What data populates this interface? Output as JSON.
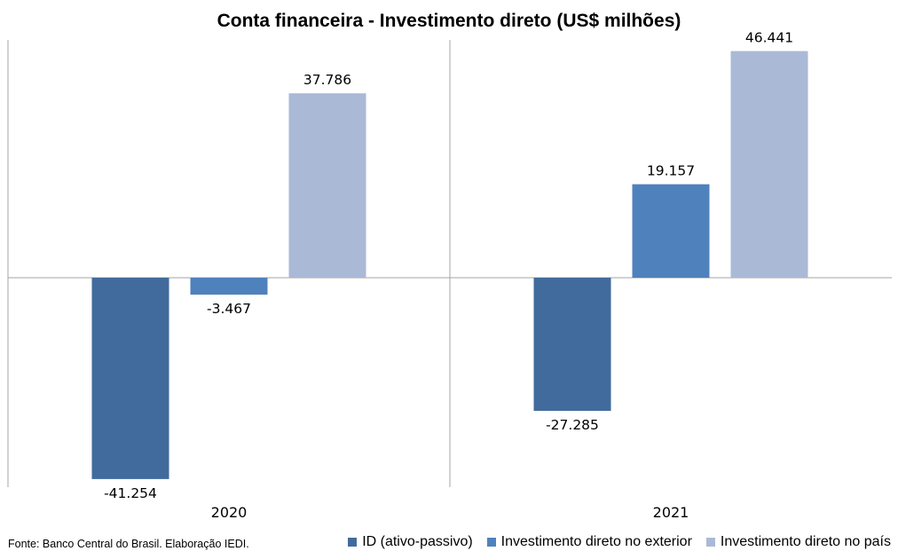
{
  "chart_data": {
    "type": "bar",
    "title": "Conta financeira - Investimento direto (US$ milhões)",
    "categories": [
      "2020",
      "2021"
    ],
    "series": [
      {
        "name": "ID (ativo-passivo)",
        "color": "#416b9c",
        "values": [
          -41.254,
          -27.285
        ],
        "labels": [
          "-41.254",
          "-27.285"
        ]
      },
      {
        "name": "Investimento direto no exterior",
        "color": "#4f81bd",
        "values": [
          -3.467,
          19.157
        ],
        "labels": [
          "-3.467",
          "19.157"
        ]
      },
      {
        "name": "Investimento direto no país",
        "color": "#aab9d6",
        "values": [
          37.786,
          46.441
        ],
        "labels": [
          "37.786",
          "46.441"
        ]
      }
    ],
    "ylim": [
      -43,
      47
    ],
    "grid": false,
    "legend_position": "bottom-right"
  },
  "source": "Fonte: Banco Central do Brasil. Elaboração IEDI."
}
